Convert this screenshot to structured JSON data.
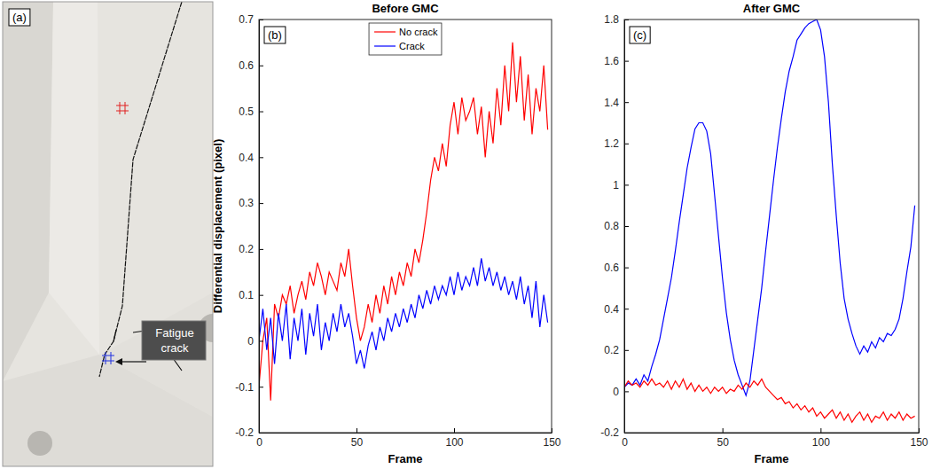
{
  "image_panel": {
    "label": "(a)",
    "annotation": "Fatigue crack"
  },
  "chart_data": [
    {
      "type": "line",
      "title": "Before GMC",
      "annotations": [
        "(b)"
      ],
      "xlabel": "Frame",
      "ylabel": "Differential displacement (pixel)",
      "xlim": [
        0,
        150
      ],
      "xticks": [
        0,
        50,
        100,
        150
      ],
      "ylim": [
        -0.2,
        0.7
      ],
      "yticks": [
        -0.2,
        -0.1,
        0,
        0.1,
        0.2,
        0.3,
        0.4,
        0.5,
        0.6,
        0.7
      ],
      "legend": "top",
      "x": [
        0,
        2,
        4,
        6,
        8,
        10,
        12,
        14,
        16,
        18,
        20,
        22,
        24,
        26,
        28,
        30,
        32,
        34,
        36,
        38,
        40,
        42,
        44,
        46,
        48,
        50,
        52,
        54,
        56,
        58,
        60,
        62,
        64,
        66,
        68,
        70,
        72,
        74,
        76,
        78,
        80,
        82,
        84,
        86,
        88,
        90,
        92,
        94,
        96,
        98,
        100,
        102,
        104,
        106,
        108,
        110,
        112,
        114,
        116,
        118,
        120,
        122,
        124,
        126,
        128,
        130,
        132,
        134,
        136,
        138,
        140,
        142,
        144,
        146,
        148
      ],
      "series": [
        {
          "name": "No crack",
          "color": "#ff0000",
          "values": [
            -0.1,
            0.0,
            0.05,
            -0.13,
            0.08,
            0.05,
            0.1,
            0.08,
            0.12,
            0.06,
            0.1,
            0.13,
            0.09,
            0.15,
            0.12,
            0.17,
            0.14,
            0.1,
            0.15,
            0.13,
            0.11,
            0.17,
            0.14,
            0.2,
            0.12,
            0.05,
            0.0,
            0.03,
            0.08,
            0.04,
            0.1,
            0.06,
            0.12,
            0.08,
            0.14,
            0.1,
            0.15,
            0.12,
            0.17,
            0.14,
            0.2,
            0.17,
            0.22,
            0.28,
            0.35,
            0.4,
            0.37,
            0.43,
            0.38,
            0.47,
            0.52,
            0.45,
            0.53,
            0.48,
            0.5,
            0.53,
            0.45,
            0.51,
            0.4,
            0.5,
            0.43,
            0.55,
            0.47,
            0.6,
            0.5,
            0.65,
            0.52,
            0.62,
            0.48,
            0.58,
            0.45,
            0.55,
            0.5,
            0.6,
            0.46
          ]
        },
        {
          "name": "Crack",
          "color": "#0000ff",
          "values": [
            0.0,
            0.07,
            -0.02,
            0.05,
            -0.05,
            0.06,
            0.0,
            0.08,
            -0.04,
            0.05,
            0.0,
            0.07,
            -0.03,
            0.06,
            0.01,
            0.08,
            -0.02,
            0.04,
            0.0,
            0.06,
            0.02,
            0.08,
            0.03,
            0.06,
            0.01,
            -0.05,
            -0.02,
            -0.06,
            -0.01,
            0.02,
            -0.02,
            0.03,
            0.0,
            0.05,
            0.02,
            0.06,
            0.03,
            0.07,
            0.04,
            0.08,
            0.05,
            0.1,
            0.07,
            0.11,
            0.08,
            0.12,
            0.09,
            0.12,
            0.1,
            0.14,
            0.1,
            0.15,
            0.11,
            0.14,
            0.12,
            0.16,
            0.12,
            0.18,
            0.13,
            0.16,
            0.12,
            0.15,
            0.11,
            0.14,
            0.1,
            0.13,
            0.09,
            0.14,
            0.08,
            0.12,
            0.05,
            0.13,
            0.03,
            0.1,
            0.04
          ]
        }
      ]
    },
    {
      "type": "line",
      "title": "After GMC",
      "annotations": [
        "(c)"
      ],
      "xlabel": "Frame",
      "xlim": [
        0,
        150
      ],
      "xticks": [
        0,
        50,
        100,
        150
      ],
      "ylim": [
        -0.2,
        1.8
      ],
      "yticks": [
        -0.2,
        0,
        0.2,
        0.4,
        0.6,
        0.8,
        1,
        1.2,
        1.4,
        1.6,
        1.8
      ],
      "x": [
        0,
        2,
        4,
        6,
        8,
        10,
        12,
        14,
        16,
        18,
        20,
        22,
        24,
        26,
        28,
        30,
        32,
        34,
        36,
        38,
        40,
        42,
        44,
        46,
        48,
        50,
        52,
        54,
        56,
        58,
        60,
        62,
        64,
        66,
        68,
        70,
        72,
        74,
        76,
        78,
        80,
        82,
        84,
        86,
        88,
        90,
        92,
        94,
        96,
        98,
        100,
        102,
        104,
        106,
        108,
        110,
        112,
        114,
        116,
        118,
        120,
        122,
        124,
        126,
        128,
        130,
        132,
        134,
        136,
        138,
        140,
        142,
        144,
        146,
        148
      ],
      "series": [
        {
          "color": "#0000ff",
          "values": [
            0.02,
            0.04,
            0.03,
            0.06,
            0.03,
            0.08,
            0.05,
            0.12,
            0.18,
            0.25,
            0.35,
            0.45,
            0.55,
            0.68,
            0.82,
            0.95,
            1.08,
            1.18,
            1.27,
            1.3,
            1.3,
            1.26,
            1.15,
            0.95,
            0.75,
            0.55,
            0.38,
            0.25,
            0.15,
            0.08,
            0.03,
            -0.02,
            0.05,
            0.2,
            0.35,
            0.5,
            0.68,
            0.85,
            1.02,
            1.18,
            1.32,
            1.45,
            1.55,
            1.62,
            1.7,
            1.73,
            1.76,
            1.78,
            1.79,
            1.8,
            1.75,
            1.62,
            1.4,
            1.1,
            0.85,
            0.62,
            0.45,
            0.35,
            0.28,
            0.22,
            0.18,
            0.22,
            0.19,
            0.24,
            0.21,
            0.26,
            0.24,
            0.28,
            0.27,
            0.3,
            0.35,
            0.45,
            0.58,
            0.7,
            0.9
          ]
        },
        {
          "color": "#ff0000",
          "values": [
            0.02,
            0.05,
            0.03,
            0.04,
            0.02,
            0.05,
            0.03,
            0.06,
            0.03,
            0.04,
            0.02,
            0.05,
            0.01,
            0.05,
            0.02,
            0.06,
            0.01,
            0.04,
            0.0,
            0.03,
            0.0,
            0.02,
            -0.01,
            0.02,
            0.0,
            0.02,
            -0.01,
            0.01,
            0.0,
            0.03,
            0.01,
            0.04,
            0.02,
            0.05,
            0.03,
            0.06,
            0.02,
            0.0,
            -0.02,
            -0.04,
            -0.03,
            -0.06,
            -0.05,
            -0.08,
            -0.06,
            -0.09,
            -0.07,
            -0.1,
            -0.08,
            -0.12,
            -0.1,
            -0.13,
            -0.11,
            -0.09,
            -0.13,
            -0.1,
            -0.14,
            -0.11,
            -0.15,
            -0.12,
            -0.1,
            -0.14,
            -0.11,
            -0.15,
            -0.12,
            -0.13,
            -0.1,
            -0.14,
            -0.11,
            -0.13,
            -0.1,
            -0.14,
            -0.11,
            -0.13,
            -0.12
          ]
        }
      ]
    }
  ]
}
